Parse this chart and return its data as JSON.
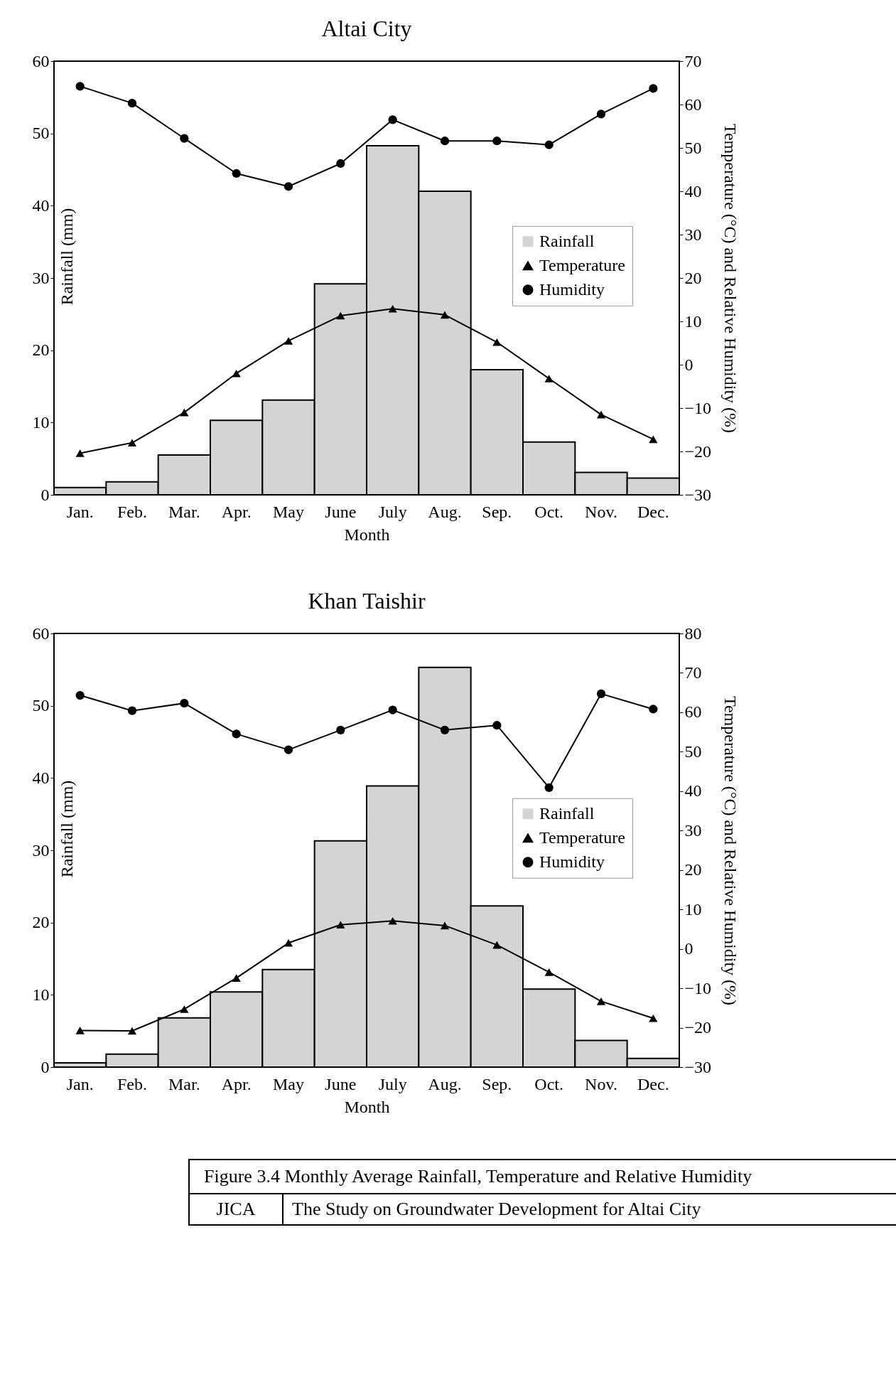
{
  "chart_data": [
    {
      "type": "bar",
      "title": "Altai City",
      "xlabel": "Month",
      "ylabel": "Rainfall (mm)",
      "y2label": "Temperature (°C) and  Relative Humidity (%)",
      "categories": [
        "Jan.",
        "Feb.",
        "Mar.",
        "Apr.",
        "May",
        "June",
        "July",
        "Aug.",
        "Sep.",
        "Oct.",
        "Nov.",
        "Dec."
      ],
      "series": [
        {
          "name": "Rainfall",
          "color": "#d4d4d4",
          "values": [
            1.0,
            1.8,
            5.5,
            10.3,
            13.1,
            29.2,
            48.3,
            42.0,
            17.3,
            7.3,
            3.1,
            2.3
          ]
        },
        {
          "name": "Temperature",
          "type": "line",
          "axis": "y2",
          "marker": "triangle",
          "color": "#000000",
          "values": [
            -20.4,
            -18,
            -11,
            -2,
            5.5,
            11.3,
            12.9,
            11.5,
            5.2,
            -3.2,
            -11.5,
            -17.2
          ]
        },
        {
          "name": "Humidity",
          "type": "line",
          "axis": "y2",
          "marker": "circle",
          "color": "#000000",
          "values": [
            64.2,
            60.3,
            52.2,
            44.1,
            41.1,
            46.4,
            56.5,
            51.6,
            51.6,
            50.7,
            57.8,
            63.7
          ]
        }
      ],
      "ylim": [
        0,
        60
      ],
      "yticks": [
        0,
        10,
        20,
        30,
        40,
        50,
        60
      ],
      "y2lim": [
        -30,
        70
      ],
      "y2ticks": [
        -30,
        -20,
        -10,
        0,
        10,
        20,
        30,
        40,
        50,
        60,
        70
      ],
      "legend": "right",
      "grid": false
    },
    {
      "type": "bar",
      "title": "Khan Taishir",
      "xlabel": "Month",
      "ylabel": "Rainfall (mm)",
      "y2label": "Temperature (°C) and  Relative Humidity (%)",
      "categories": [
        "Jan.",
        "Feb.",
        "Mar.",
        "Apr.",
        "May",
        "June",
        "July",
        "Aug.",
        "Sep.",
        "Oct.",
        "Nov.",
        "Dec."
      ],
      "series": [
        {
          "name": "Rainfall",
          "color": "#d4d4d4",
          "values": [
            0.6,
            1.8,
            6.8,
            10.4,
            13.5,
            31.3,
            38.9,
            55.3,
            22.3,
            10.8,
            3.7,
            1.2
          ]
        },
        {
          "name": "Temperature",
          "type": "line",
          "axis": "y2",
          "marker": "triangle",
          "color": "#000000",
          "values": [
            -20.7,
            -20.8,
            -15.3,
            -7.4,
            1.5,
            6.1,
            7.1,
            5.9,
            1.0,
            -5.9,
            -13.3,
            -17.6
          ]
        },
        {
          "name": "Humidity",
          "type": "line",
          "axis": "y2",
          "marker": "circle",
          "color": "#000000",
          "values": [
            64.3,
            60.4,
            62.3,
            54.5,
            50.5,
            55.5,
            60.6,
            55.5,
            56.7,
            40.9,
            64.7,
            60.8
          ]
        }
      ],
      "ylim": [
        0,
        60
      ],
      "yticks": [
        0,
        10,
        20,
        30,
        40,
        50,
        60
      ],
      "y2lim": [
        -30,
        80
      ],
      "y2ticks": [
        -30,
        -20,
        -10,
        0,
        10,
        20,
        30,
        40,
        50,
        60,
        70,
        80
      ],
      "legend": "right",
      "grid": false,
      "annotations": [
        "Figure 3.4   Monthly Average Rainfall, Temperature and Relative Humidity",
        "JICA",
        "The Study on  Groundwater Development for Altai City"
      ]
    }
  ]
}
